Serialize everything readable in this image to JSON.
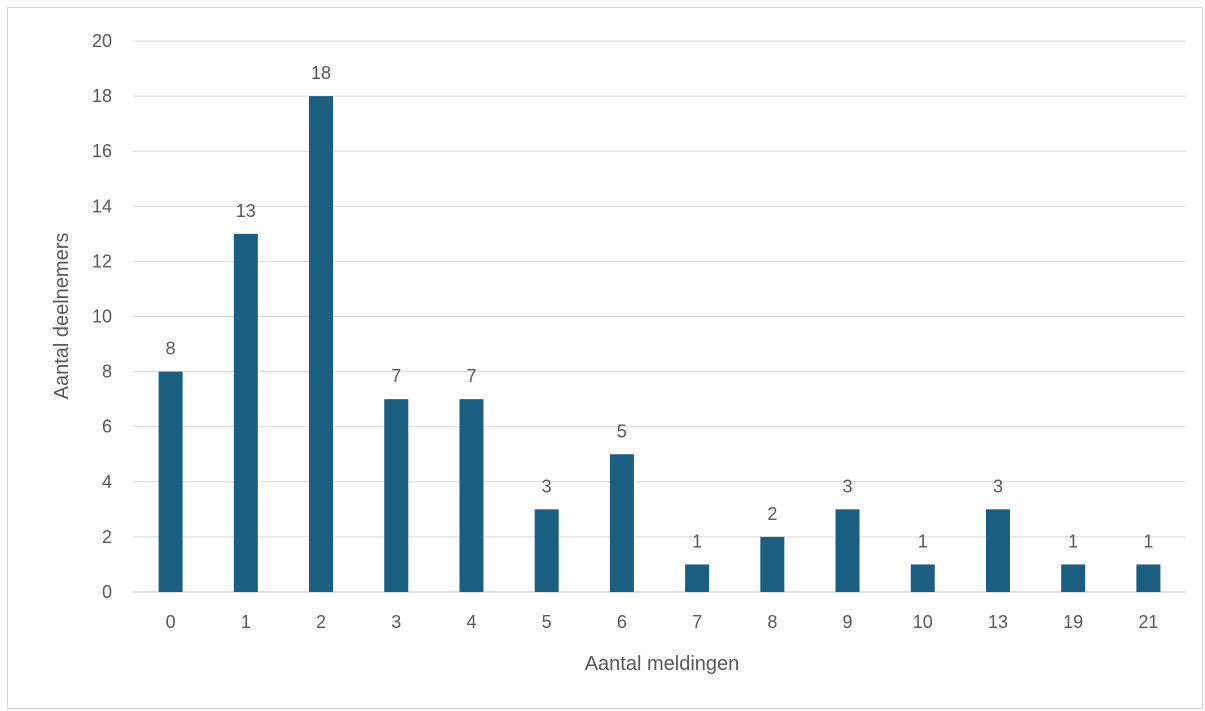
{
  "chart_data": {
    "type": "bar",
    "title": "",
    "xlabel": "Aantal meldingen",
    "ylabel": "Aantal deelnemers",
    "categories": [
      "0",
      "1",
      "2",
      "3",
      "4",
      "5",
      "6",
      "7",
      "8",
      "9",
      "10",
      "13",
      "19",
      "21"
    ],
    "values": [
      8,
      13,
      18,
      7,
      7,
      3,
      5,
      1,
      2,
      3,
      1,
      3,
      1,
      1
    ],
    "ylim": [
      0,
      20
    ],
    "yticks": [
      0,
      2,
      4,
      6,
      8,
      10,
      12,
      14,
      16,
      18,
      20
    ],
    "grid": true,
    "legend": "none",
    "bar_color": "#1a5f82",
    "data_labels": true
  }
}
